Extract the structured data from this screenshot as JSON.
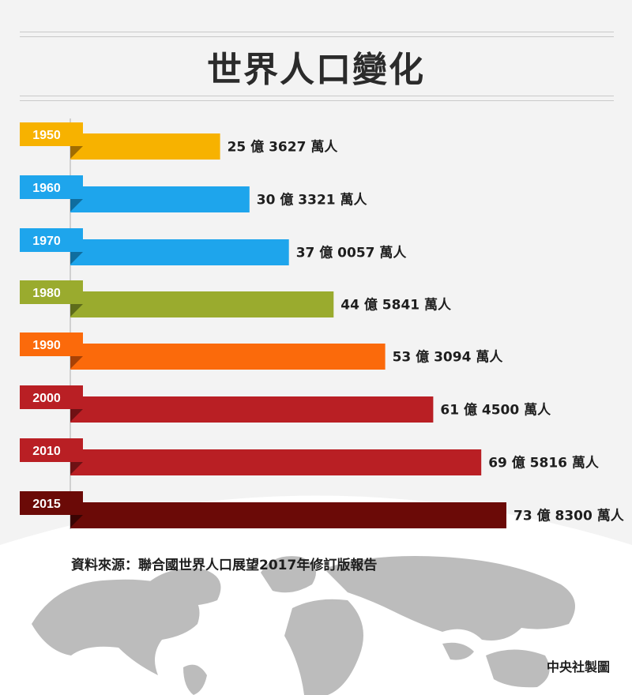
{
  "title": "世界人口變化",
  "source": "資料來源：聯合國世界人口展望2017年修訂版報告",
  "credit": "中央社製圖",
  "chart_data": {
    "type": "bar",
    "orientation": "horizontal",
    "title": "世界人口變化",
    "unit": "萬人",
    "categories": [
      "1950",
      "1960",
      "1970",
      "1980",
      "1990",
      "2000",
      "2010",
      "2015"
    ],
    "values": [
      253627,
      303321,
      370057,
      445841,
      533094,
      614500,
      695816,
      738300
    ],
    "labels": [
      "25 億 3627 萬人",
      "30 億 3321 萬人",
      "37 億 0057 萬人",
      "44 億 5841 萬人",
      "53 億 3094 萬人",
      "61 億 4500 萬人",
      "69 億 5816 萬人",
      "73 億 8300 萬人"
    ],
    "colors": [
      "#f7b200",
      "#1ea5ec",
      "#1ea5ec",
      "#9aab2e",
      "#fb6a0b",
      "#b91f24",
      "#b91f24",
      "#6b0a07"
    ],
    "fold_colors": [
      "#a06d00",
      "#0f6d9e",
      "#0f6d9e",
      "#5e6c1b",
      "#a84105",
      "#6f1114",
      "#6f1114",
      "#3a0403"
    ]
  }
}
